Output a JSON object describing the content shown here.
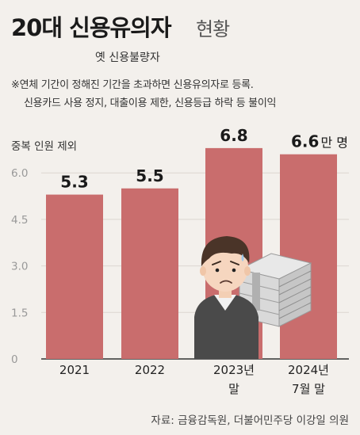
{
  "header": {
    "title_main": "20대 신용유의자",
    "title_sub": "현황",
    "subtitle": "옛 신용불량자",
    "note_line1": "※연체 기간이 정해진 기간을 초과하면 신용유의자로 등록.",
    "note_line2": "신용카드 사용 정지, 대출이용 제한, 신용등급 하락 등 불이익"
  },
  "source": "자료: 금융감독원, 더불어민주당 이강일 의원",
  "colors": {
    "bar": "#c96d6d",
    "grid": "#dcd6d0",
    "background": "#f3f0ec"
  },
  "chart_data": {
    "type": "bar",
    "title": "20대 신용유의자 현황",
    "ylabel": "중복 인원 제외",
    "categories": [
      [
        "2021"
      ],
      [
        "2022"
      ],
      [
        "2023년",
        "말"
      ],
      [
        "2024년",
        "7월 말"
      ]
    ],
    "values": [
      5.3,
      5.5,
      6.8,
      6.6
    ],
    "value_labels": [
      "5.3",
      "5.5",
      "6.8",
      "6.6"
    ],
    "unit_suffix": "만 명",
    "ylim": [
      0,
      7.5
    ],
    "yticks": [
      "0",
      "1.5",
      "3.0",
      "4.5",
      "6.0"
    ],
    "ytick_values": [
      0,
      1.5,
      3.0,
      4.5,
      6.0
    ],
    "grid": true,
    "illustration": "worried man carrying bundle of cash"
  }
}
